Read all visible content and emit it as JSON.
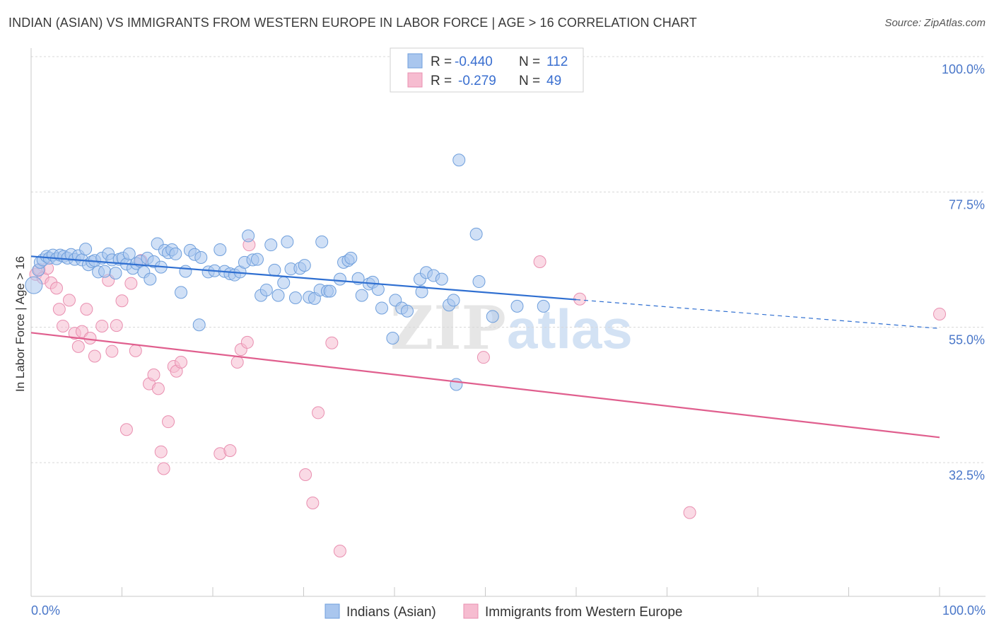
{
  "title": "INDIAN (ASIAN) VS IMMIGRANTS FROM WESTERN EUROPE IN LABOR FORCE | AGE > 16 CORRELATION CHART",
  "source": "Source: ZipAtlas.com",
  "watermark": {
    "zip": "ZIP",
    "atlas": "atlas"
  },
  "colors": {
    "blue_fill": "#a9c6ee",
    "blue_stroke": "#6f9fdc",
    "blue_line": "#2f6fd1",
    "pink_fill": "#f6bcd0",
    "pink_stroke": "#e98fb0",
    "pink_line": "#e05f8e",
    "grid": "#d8d8d8",
    "tick_text": "#4a77c9"
  },
  "legend": {
    "row1": {
      "r_label": "R =",
      "r_value": "-0.440",
      "n_label": "N =",
      "n_value": "112"
    },
    "row2": {
      "r_label": "R =",
      "r_value": "-0.279",
      "n_label": "N =",
      "n_value": "49"
    }
  },
  "chart_data": {
    "type": "scatter",
    "title": "INDIAN (ASIAN) VS IMMIGRANTS FROM WESTERN EUROPE IN LABOR FORCE | AGE > 16 CORRELATION CHART",
    "xlabel": "",
    "ylabel": "In Labor Force | Age > 16",
    "xlim": [
      0,
      100
    ],
    "ylim": [
      15,
      105
    ],
    "x_tick_labels": [
      "0.0%",
      "100.0%"
    ],
    "y_ticks": [
      32.5,
      55.0,
      77.5,
      100.0
    ],
    "y_tick_labels": [
      "32.5%",
      "55.0%",
      "77.5%",
      "100.0%"
    ],
    "grid": true,
    "legend_position": "top-center",
    "series": [
      {
        "name": "Indians (Asian)",
        "color": "#a9c6ee",
        "trend": {
          "x1": 0,
          "y1": 66.8,
          "x2": 60,
          "y2": 59.6,
          "dash_to_x": 100,
          "dash_to_y": 54.8
        },
        "points": [
          [
            0.3,
            62
          ],
          [
            0.8,
            64.5
          ],
          [
            1.0,
            65.8
          ],
          [
            1.3,
            66.2
          ],
          [
            1.7,
            66.8
          ],
          [
            2.0,
            66.5
          ],
          [
            2.4,
            67
          ],
          [
            2.8,
            66.4
          ],
          [
            3.2,
            67
          ],
          [
            3.6,
            66.8
          ],
          [
            4.0,
            66.5
          ],
          [
            4.4,
            67.1
          ],
          [
            4.8,
            66.3
          ],
          [
            5.2,
            66.9
          ],
          [
            5.6,
            66.2
          ],
          [
            6.0,
            68
          ],
          [
            6.3,
            65.4
          ],
          [
            6.7,
            65.9
          ],
          [
            7.0,
            66.1
          ],
          [
            7.4,
            64.2
          ],
          [
            7.8,
            66.5
          ],
          [
            8.1,
            64.3
          ],
          [
            8.5,
            67.2
          ],
          [
            8.9,
            66.2
          ],
          [
            9.3,
            64.0
          ],
          [
            9.7,
            66.3
          ],
          [
            10.1,
            66.5
          ],
          [
            10.5,
            65.5
          ],
          [
            10.8,
            67.2
          ],
          [
            11.2,
            64.8
          ],
          [
            11.6,
            65.6
          ],
          [
            12.0,
            66.0
          ],
          [
            12.4,
            64.2
          ],
          [
            12.8,
            66.5
          ],
          [
            13.1,
            63
          ],
          [
            13.5,
            65.9
          ],
          [
            13.9,
            68.9
          ],
          [
            14.3,
            65.0
          ],
          [
            14.7,
            67.8
          ],
          [
            15.1,
            67.4
          ],
          [
            15.5,
            67.9
          ],
          [
            15.9,
            67.2
          ],
          [
            16.5,
            60.8
          ],
          [
            17.0,
            64.3
          ],
          [
            17.5,
            67.8
          ],
          [
            18.0,
            67.1
          ],
          [
            18.5,
            55.4
          ],
          [
            18.7,
            66.6
          ],
          [
            19.5,
            64.2
          ],
          [
            20.2,
            64.4
          ],
          [
            20.8,
            67.9
          ],
          [
            21.3,
            64.3
          ],
          [
            21.9,
            63.9
          ],
          [
            22.4,
            63.7
          ],
          [
            23.0,
            64.2
          ],
          [
            23.5,
            65.8
          ],
          [
            23.9,
            70.2
          ],
          [
            24.4,
            66.2
          ],
          [
            24.9,
            66.3
          ],
          [
            25.3,
            60.3
          ],
          [
            25.9,
            61.2
          ],
          [
            26.4,
            68.7
          ],
          [
            26.8,
            64.5
          ],
          [
            27.2,
            60.3
          ],
          [
            27.8,
            62.4
          ],
          [
            28.2,
            69.2
          ],
          [
            28.6,
            64.7
          ],
          [
            29.1,
            59.9
          ],
          [
            29.6,
            64.8
          ],
          [
            30.1,
            65.3
          ],
          [
            30.6,
            60.0
          ],
          [
            31.2,
            59.8
          ],
          [
            31.8,
            61.2
          ],
          [
            32.0,
            69.2
          ],
          [
            32.6,
            61
          ],
          [
            32.9,
            61.0
          ],
          [
            34.0,
            63.0
          ],
          [
            34.4,
            65.8
          ],
          [
            34.9,
            66.1
          ],
          [
            35.2,
            66.5
          ],
          [
            36.0,
            63.1
          ],
          [
            36.4,
            60.3
          ],
          [
            37.2,
            62.2
          ],
          [
            37.6,
            62.5
          ],
          [
            38.2,
            61.3
          ],
          [
            38.6,
            58.2
          ],
          [
            39.8,
            53.2
          ],
          [
            40.1,
            59.5
          ],
          [
            40.8,
            58.2
          ],
          [
            41.4,
            57.7
          ],
          [
            42.8,
            63.0
          ],
          [
            43.0,
            60.9
          ],
          [
            43.5,
            64.1
          ],
          [
            44.3,
            63.6
          ],
          [
            45.2,
            63.0
          ],
          [
            46.0,
            58.7
          ],
          [
            46.5,
            59.5
          ],
          [
            46.8,
            45.5
          ],
          [
            47.1,
            82.8
          ],
          [
            49.0,
            70.5
          ],
          [
            49.3,
            62.6
          ],
          [
            50.8,
            56.8
          ],
          [
            53.5,
            58.5
          ],
          [
            56.4,
            58.5
          ]
        ]
      },
      {
        "name": "Immigrants from Western Europe",
        "color": "#f6bcd0",
        "trend": {
          "x1": 0,
          "y1": 54.1,
          "x2": 100,
          "y2": 36.7
        },
        "points": [
          [
            0.5,
            63.8
          ],
          [
            0.9,
            64.6
          ],
          [
            1.3,
            63.2
          ],
          [
            1.8,
            64.8
          ],
          [
            2.2,
            62.4
          ],
          [
            2.8,
            61.5
          ],
          [
            3.1,
            58
          ],
          [
            3.5,
            55.2
          ],
          [
            4.2,
            59.5
          ],
          [
            4.8,
            54
          ],
          [
            5.2,
            51.8
          ],
          [
            5.6,
            54.3
          ],
          [
            6.1,
            58
          ],
          [
            6.5,
            53.2
          ],
          [
            7.0,
            50.2
          ],
          [
            7.8,
            55.2
          ],
          [
            8.5,
            62.8
          ],
          [
            8.9,
            51
          ],
          [
            9.4,
            55.3
          ],
          [
            10.0,
            59.4
          ],
          [
            10.5,
            38
          ],
          [
            11.0,
            62.3
          ],
          [
            11.5,
            51.1
          ],
          [
            12.1,
            66.1
          ],
          [
            13.0,
            45.6
          ],
          [
            13.5,
            47.1
          ],
          [
            14.0,
            44.8
          ],
          [
            14.3,
            34.3
          ],
          [
            14.6,
            31.5
          ],
          [
            15.1,
            39.3
          ],
          [
            15.7,
            48.5
          ],
          [
            16.0,
            47.7
          ],
          [
            16.5,
            49.2
          ],
          [
            20.8,
            34.0
          ],
          [
            21.9,
            34.5
          ],
          [
            22.7,
            49.2
          ],
          [
            23.1,
            51.3
          ],
          [
            23.8,
            52.5
          ],
          [
            24.0,
            68.7
          ],
          [
            30.2,
            30.5
          ],
          [
            31.0,
            25.8
          ],
          [
            31.6,
            40.8
          ],
          [
            33.1,
            52.4
          ],
          [
            34.0,
            17.8
          ],
          [
            49.8,
            50.0
          ],
          [
            56.0,
            65.9
          ],
          [
            60.4,
            59.7
          ],
          [
            72.5,
            24.2
          ],
          [
            100,
            57.2
          ]
        ]
      }
    ]
  },
  "bottom_legend": {
    "item1": "Indians (Asian)",
    "item2": "Immigrants from Western Europe"
  }
}
